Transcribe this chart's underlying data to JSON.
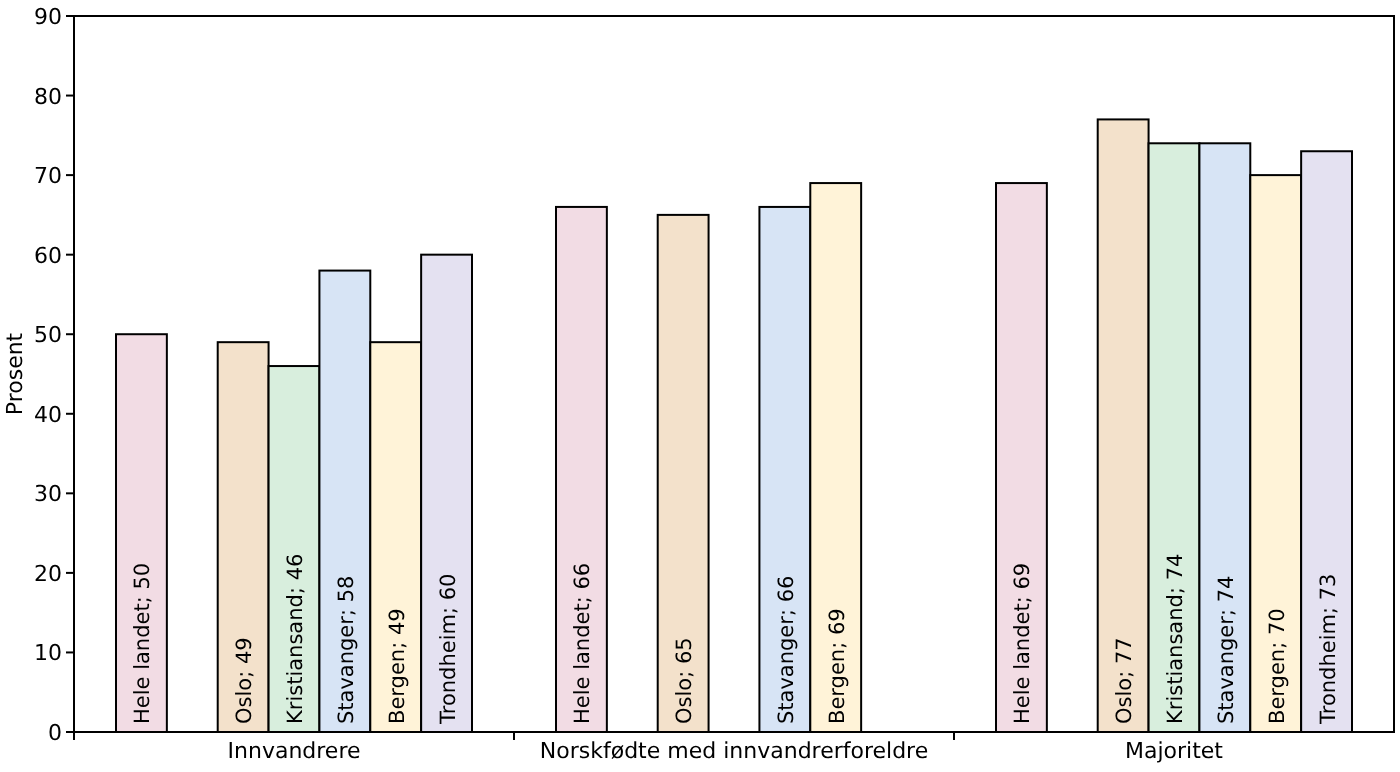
{
  "chart_data": {
    "type": "bar",
    "ylabel": "Prosent",
    "categories": [
      "Innvandrere",
      "Norskfødte med innvandrerforeldre",
      "Majoritet"
    ],
    "series": [
      {
        "color": "#f2dce4",
        "values": [
          50,
          66,
          69
        ],
        "value_labels": [
          "Hele landet; 50",
          "Hele landet; 66",
          "Hele landet; 69"
        ]
      },
      {
        "color": "#f3e1cb",
        "values": [
          49,
          65,
          77
        ],
        "value_labels": [
          "Oslo; 49",
          "Oslo; 65",
          "Oslo; 77"
        ]
      },
      {
        "color": "#d8eedd",
        "values": [
          46,
          null,
          74
        ],
        "value_labels": [
          "Kristiansand; 46",
          null,
          "Kristiansand; 74"
        ]
      },
      {
        "color": "#d7e4f5",
        "values": [
          58,
          66,
          74
        ],
        "value_labels": [
          "Stavanger; 58",
          "Stavanger; 66",
          "Stavanger; 74"
        ]
      },
      {
        "color": "#fff3d8",
        "values": [
          49,
          69,
          70
        ],
        "value_labels": [
          "Bergen; 49",
          "Bergen; 69",
          "Bergen; 70"
        ]
      },
      {
        "color": "#e4e1f1",
        "values": [
          60,
          null,
          73
        ],
        "value_labels": [
          "Trondheim; 60",
          null,
          "Trondheim; 73"
        ]
      }
    ],
    "ylim": [
      0,
      90
    ],
    "yticks": [
      0,
      10,
      20,
      30,
      40,
      50,
      60,
      70,
      80,
      90
    ],
    "grid": false
  }
}
